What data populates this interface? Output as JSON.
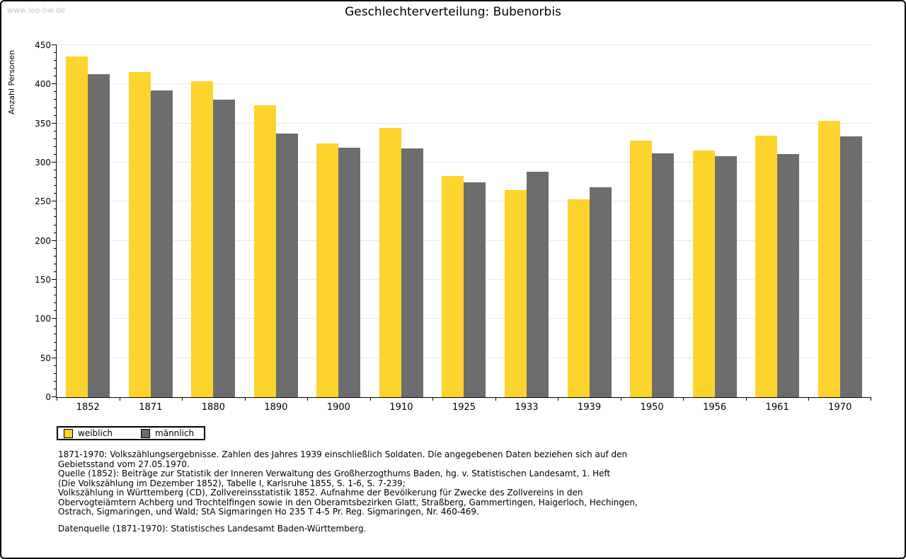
{
  "watermark": "www.leo-bw.de",
  "title": "Geschlechterverteilung: Bubenorbis",
  "chart_data": {
    "type": "bar",
    "title": "Geschlechterverteilung: Bubenorbis",
    "xlabel": "",
    "ylabel": "Anzahl Personen",
    "ylim": [
      0,
      450
    ],
    "ytick_step": 50,
    "ytick_labels": [
      0,
      50,
      100,
      150,
      200,
      250,
      300,
      350,
      400,
      450
    ],
    "minor_tick_step": 10,
    "grid": true,
    "legend_position": "bottom-left",
    "categories": [
      "1852",
      "1871",
      "1880",
      "1890",
      "1900",
      "1910",
      "1925",
      "1933",
      "1939",
      "1950",
      "1956",
      "1961",
      "1970"
    ],
    "series": [
      {
        "name": "weiblich",
        "key": "weiblich",
        "color": "#FDD32E",
        "values": [
          436,
          416,
          404,
          373,
          324,
          344,
          283,
          265,
          253,
          328,
          315,
          334,
          353
        ]
      },
      {
        "name": "männlich",
        "key": "maennlich",
        "color": "#6D6D6D",
        "values": [
          413,
          392,
          380,
          337,
          319,
          318,
          275,
          288,
          268,
          312,
          308,
          311,
          333
        ]
      }
    ]
  },
  "legend": {
    "items": [
      {
        "label": "weiblich",
        "color": "#FDD32E"
      },
      {
        "label": "männlich",
        "color": "#6D6D6D"
      }
    ]
  },
  "footer": {
    "lines": [
      "1871-1970: Volkszählungsergebnisse. Zahlen des Jahres 1939 einschließlich Soldaten. Die angegebenen Daten beziehen sich auf den",
      "Gebietsstand vom 27.05.1970.",
      "Quelle (1852): Beiträge zur Statistik der Inneren Verwaltung des Großherzogthums Baden, hg. v. Statistischen Landesamt, 1. Heft",
      "(Die Volkszählung im Dezember 1852), Tabelle I, Karlsruhe 1855, S. 1-6, S. 7-239;",
      "Volkszählung in Württemberg (CD), Zollvereinsstatistik 1852. Aufnahme der Bevölkerung für Zwecke des Zollvereins in den",
      "Obervogteiämtern Achberg und Trochtelfingen sowie in den Oberamtsbezirken Glatt, Straßberg, Gammertingen, Haigerloch, Hechingen,",
      "Ostrach, Sigmaringen, und Wald; StA Sigmaringen Ho 235 T 4-5 Pr. Reg. Sigmaringen, Nr. 460-469."
    ],
    "datasource": "Datenquelle (1871-1970): Statistisches Landesamt Baden-Württemberg."
  },
  "colors": {
    "weiblich": "#FDD32E",
    "maennlich": "#6D6D6D",
    "gridline": "#E8E8E8",
    "axis": "#000000",
    "watermark_text": "#C9C9C9"
  }
}
